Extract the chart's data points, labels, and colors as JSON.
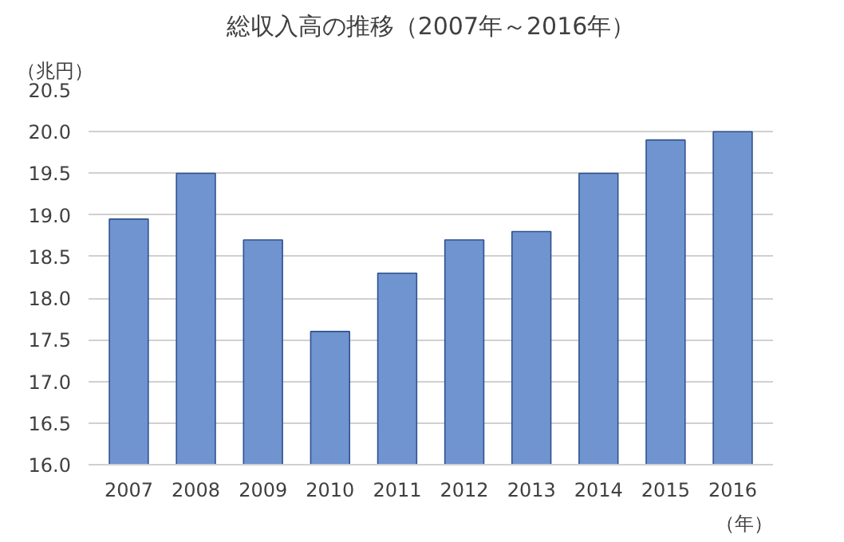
{
  "chart_data": {
    "type": "bar",
    "title": "総収入高の推移（2007年～2016年）",
    "ylabel": "（兆円）",
    "xlabel": "（年）",
    "categories": [
      "2007",
      "2008",
      "2009",
      "2010",
      "2011",
      "2012",
      "2013",
      "2014",
      "2015",
      "2016"
    ],
    "values": [
      18.95,
      19.5,
      18.7,
      17.6,
      18.3,
      18.7,
      18.8,
      19.5,
      19.9,
      20.0
    ],
    "color": "#7094cf",
    "ylim": [
      16,
      20.5
    ],
    "yticks": [
      {
        "value": 16,
        "label": "16.0"
      },
      16.5,
      {
        "value": 17,
        "label": "17.0"
      },
      17.5,
      {
        "value": 18,
        "label": "18.0"
      },
      18.5,
      {
        "value": 19,
        "label": "19.0"
      },
      19.5,
      {
        "value": 20,
        "label": "20.0"
      },
      20.5
    ],
    "grid": "y"
  }
}
